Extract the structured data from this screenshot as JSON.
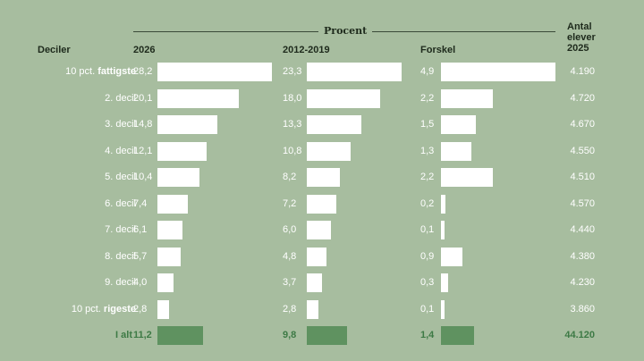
{
  "chart_data": {
    "type": "table",
    "superheader": "Procent",
    "headers": {
      "decile": "Deciler",
      "y2026": "2026",
      "y2012": "2012-2019",
      "diff": "Forskel",
      "count_line1": "Antal",
      "count_line2": "elever",
      "count_line3": "2025"
    },
    "rows": [
      {
        "label_prefix": "10 pct. ",
        "label_bold": "fattigste",
        "v2026": "28,2",
        "v2012": "23,3",
        "diff": "4,9",
        "count": "4.190"
      },
      {
        "label_prefix": "2. decil",
        "label_bold": "",
        "v2026": "20,1",
        "v2012": "18,0",
        "diff": "2,2",
        "count": "4.720"
      },
      {
        "label_prefix": "3. decil",
        "label_bold": "",
        "v2026": "14,8",
        "v2012": "13,3",
        "diff": "1,5",
        "count": "4.670"
      },
      {
        "label_prefix": "4. decil",
        "label_bold": "",
        "v2026": "12,1",
        "v2012": "10,8",
        "diff": "1,3",
        "count": "4.550"
      },
      {
        "label_prefix": "5. decil",
        "label_bold": "",
        "v2026": "10,4",
        "v2012": "8,2",
        "diff": "2,2",
        "count": "4.510"
      },
      {
        "label_prefix": "6. decil",
        "label_bold": "",
        "v2026": "7,4",
        "v2012": "7,2",
        "diff": "0,2",
        "count": "4.570"
      },
      {
        "label_prefix": "7. decil",
        "label_bold": "",
        "v2026": "6,1",
        "v2012": "6,0",
        "diff": "0,1",
        "count": "4.440"
      },
      {
        "label_prefix": "8. decil",
        "label_bold": "",
        "v2026": "5,7",
        "v2012": "4,8",
        "diff": "0,9",
        "count": "4.380"
      },
      {
        "label_prefix": "9. decil",
        "label_bold": "",
        "v2026": "4,0",
        "v2012": "3,7",
        "diff": "0,3",
        "count": "4.230"
      },
      {
        "label_prefix": "10 pct. ",
        "label_bold": "rigeste",
        "v2026": "2,8",
        "v2012": "2,8",
        "diff": "0,1",
        "count": "3.860"
      }
    ],
    "total": {
      "label": "I alt",
      "v2026": "11,2",
      "v2012": "9,8",
      "diff": "1,4",
      "count": "44.120"
    },
    "colors": {
      "background": "#a7bd9f",
      "bar": "#ffffff",
      "total_bar": "#5f9260",
      "total_text": "#3d7a45"
    }
  }
}
